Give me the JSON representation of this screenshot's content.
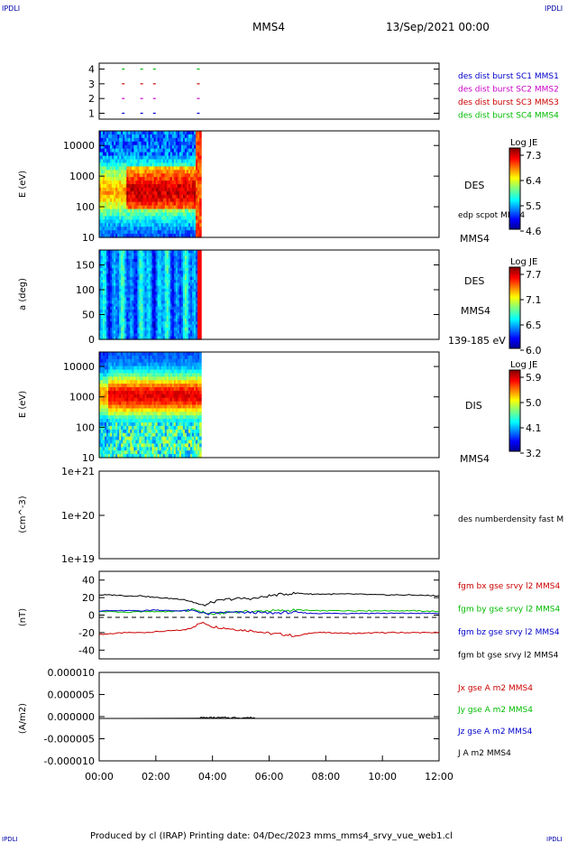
{
  "header": {
    "logo_left": "IPDLI",
    "logo_right": "IPDLI",
    "spacecraft": "MMS4",
    "datetime": "13/Sep/2021 00:00"
  },
  "footer": {
    "text": "Produced by cl (IRAP)   Printing date: 04/Dec/2023   mms_mms4_srvy_vue_web1.cl",
    "logo_left": "IPDLI",
    "logo_right": "IPDLI"
  },
  "colors": {
    "blue": "#0000cc",
    "magenta": "#cc00cc",
    "red": "#cc0000",
    "green": "#00bb00",
    "black": "#000000"
  },
  "chart_data": [
    {
      "type": "scatter",
      "panel": "burst-availability",
      "y_ticks": [
        "1",
        "2",
        "3",
        "4"
      ],
      "ylim": [
        0.6,
        4.4
      ],
      "x_hours": [
        0.85,
        1.5,
        1.95,
        3.5
      ],
      "series": [
        {
          "name": "des dist burst SC1 MMS1",
          "y": 1,
          "color": "#0000cc"
        },
        {
          "name": "des dist burst SC2 MMS2",
          "y": 2,
          "color": "#cc00cc"
        },
        {
          "name": "des dist burst SC3 MMS3",
          "y": 3,
          "color": "#cc0000"
        },
        {
          "name": "des dist burst SC4 MMS4",
          "y": 4,
          "color": "#00bb00"
        }
      ]
    },
    {
      "type": "heatmap",
      "panel": "des-energy",
      "ylabel": "E (eV)",
      "y_ticks": [
        "10",
        "100",
        "1000",
        "10000"
      ],
      "ylim": [
        10,
        30000
      ],
      "y_log": true,
      "data_until_hour": 3.6,
      "right_labels": [
        "DES",
        "edp scpot MMS4",
        "MMS4"
      ],
      "colorbar": {
        "title": "Log JE",
        "ticks": [
          "7.3",
          "6.4",
          "5.5",
          "4.6"
        ]
      }
    },
    {
      "type": "heatmap",
      "panel": "des-pitch",
      "ylabel": "a (deg)",
      "y_ticks": [
        "0",
        "50",
        "100",
        "150"
      ],
      "ylim": [
        0,
        180
      ],
      "data_until_hour": 3.6,
      "right_labels": [
        "DES",
        "MMS4",
        "139-185 eV"
      ],
      "colorbar": {
        "title": "Log JE",
        "ticks": [
          "7.7",
          "7.1",
          "6.5",
          "6.0"
        ]
      }
    },
    {
      "type": "heatmap",
      "panel": "dis-energy",
      "ylabel": "E (eV)",
      "y_ticks": [
        "10",
        "100",
        "1000",
        "10000"
      ],
      "ylim": [
        10,
        30000
      ],
      "y_log": true,
      "data_until_hour": 3.6,
      "right_labels": [
        "DIS",
        "MMS4"
      ],
      "colorbar": {
        "title": "Log JE",
        "ticks": [
          "5.9",
          "5.0",
          "4.1",
          "3.2"
        ]
      }
    },
    {
      "type": "line",
      "panel": "density",
      "ylabel": "(cm^-3)",
      "y_ticks": [
        "1e+19",
        "1e+20",
        "1e+21"
      ],
      "series": [
        {
          "name": "des numberdensity fast M",
          "values": []
        }
      ]
    },
    {
      "type": "line",
      "panel": "fgm",
      "ylabel": "(nT)",
      "y_ticks": [
        "-40",
        "-20",
        "0",
        "20",
        "40"
      ],
      "ylim": [
        -50,
        50
      ],
      "x_hours": [
        0,
        0.5,
        1,
        1.5,
        2,
        2.5,
        3,
        3.4,
        3.6,
        3.8,
        4,
        4.5,
        5,
        5.5,
        6,
        6.5,
        7,
        7.5,
        8,
        9,
        10,
        11,
        12
      ],
      "series": [
        {
          "name": "fgm bx gse srvy l2 MMS4",
          "color": "#cc0000",
          "values": [
            -22,
            -21,
            -20,
            -20,
            -19,
            -18,
            -17,
            -12,
            -9,
            -10,
            -13,
            -15,
            -17,
            -18,
            -21,
            -22,
            -24,
            -20,
            -20,
            -21,
            -20,
            -20,
            -20
          ]
        },
        {
          "name": "fgm by gse srvy l2 MMS4",
          "color": "#00bb00",
          "values": [
            4,
            4,
            3,
            4,
            4,
            4,
            5,
            6,
            4,
            2,
            1,
            3,
            4,
            4,
            5,
            5,
            6,
            5,
            5,
            5,
            5,
            5,
            4
          ]
        },
        {
          "name": "fgm bz gse srvy l2 MMS4",
          "color": "#0000cc",
          "values": [
            5,
            5,
            5,
            5,
            6,
            5,
            5,
            5,
            3,
            1,
            2,
            3,
            3,
            3,
            2,
            3,
            3,
            2,
            2,
            2,
            2,
            2,
            2
          ]
        },
        {
          "name": "fgm bt gse srvy l2 MMS4",
          "color": "#000000",
          "values": [
            23,
            23,
            22,
            22,
            20,
            19,
            18,
            14,
            11,
            12,
            15,
            18,
            19,
            19,
            22,
            24,
            25,
            24,
            24,
            24,
            23,
            23,
            22
          ]
        }
      ]
    },
    {
      "type": "line",
      "panel": "current",
      "ylabel": "(A/m2)",
      "y_ticks": [
        "-0.000010",
        "-0.000005",
        "0.000000",
        "0.000005",
        "0.000010"
      ],
      "ylim": [
        -1e-05,
        1e-05
      ],
      "xlabel_ticks": [
        "00:00",
        "02:00",
        "04:00",
        "06:00",
        "08:00",
        "10:00",
        "12:00"
      ],
      "series": [
        {
          "name": "Jx gse A m2 MMS4",
          "color": "#cc0000",
          "values": [
            0
          ]
        },
        {
          "name": "Jy gse A m2 MMS4",
          "color": "#00bb00",
          "values": [
            0
          ]
        },
        {
          "name": "Jz gse A m2 MMS4",
          "color": "#0000cc",
          "values": [
            0
          ]
        },
        {
          "name": "J A m2 MMS4",
          "color": "#000000",
          "values": [
            0
          ]
        }
      ]
    }
  ]
}
